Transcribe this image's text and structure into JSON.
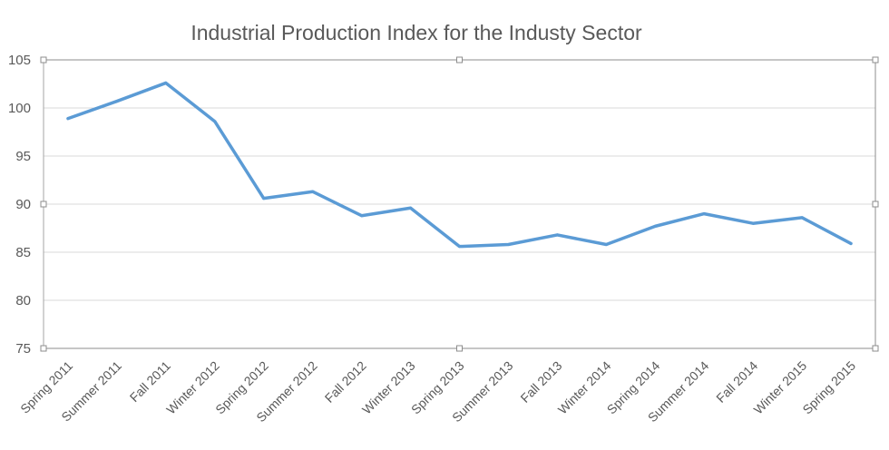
{
  "chart_data": {
    "type": "line",
    "title": "Industrial Production Index for the Industy Sector",
    "xlabel": "",
    "ylabel": "",
    "ylim": [
      75,
      105
    ],
    "yticks": [
      75,
      80,
      85,
      90,
      95,
      100,
      105
    ],
    "grid": true,
    "legend": "none",
    "line_color": "#5B9BD5",
    "categories": [
      "Spring 2011",
      "Summer  2011",
      "Fall 2011",
      "Winter 2012",
      "Spring 2012",
      "Summer  2012",
      "Fall 2012",
      "Winter 2013",
      "Spring 2013",
      "Summer 2013",
      "Fall 2013",
      "Winter 2014",
      "Spring 2014",
      "Summer 2014",
      "Fall 2014",
      "Winter 2015",
      "Spring 2015"
    ],
    "series": [
      {
        "name": "Industrial Production Index",
        "values": [
          98.9,
          100.7,
          102.6,
          98.6,
          90.6,
          91.3,
          88.8,
          89.6,
          85.6,
          85.8,
          86.8,
          85.8,
          87.7,
          89.0,
          88.0,
          88.6,
          85.9
        ]
      }
    ]
  }
}
